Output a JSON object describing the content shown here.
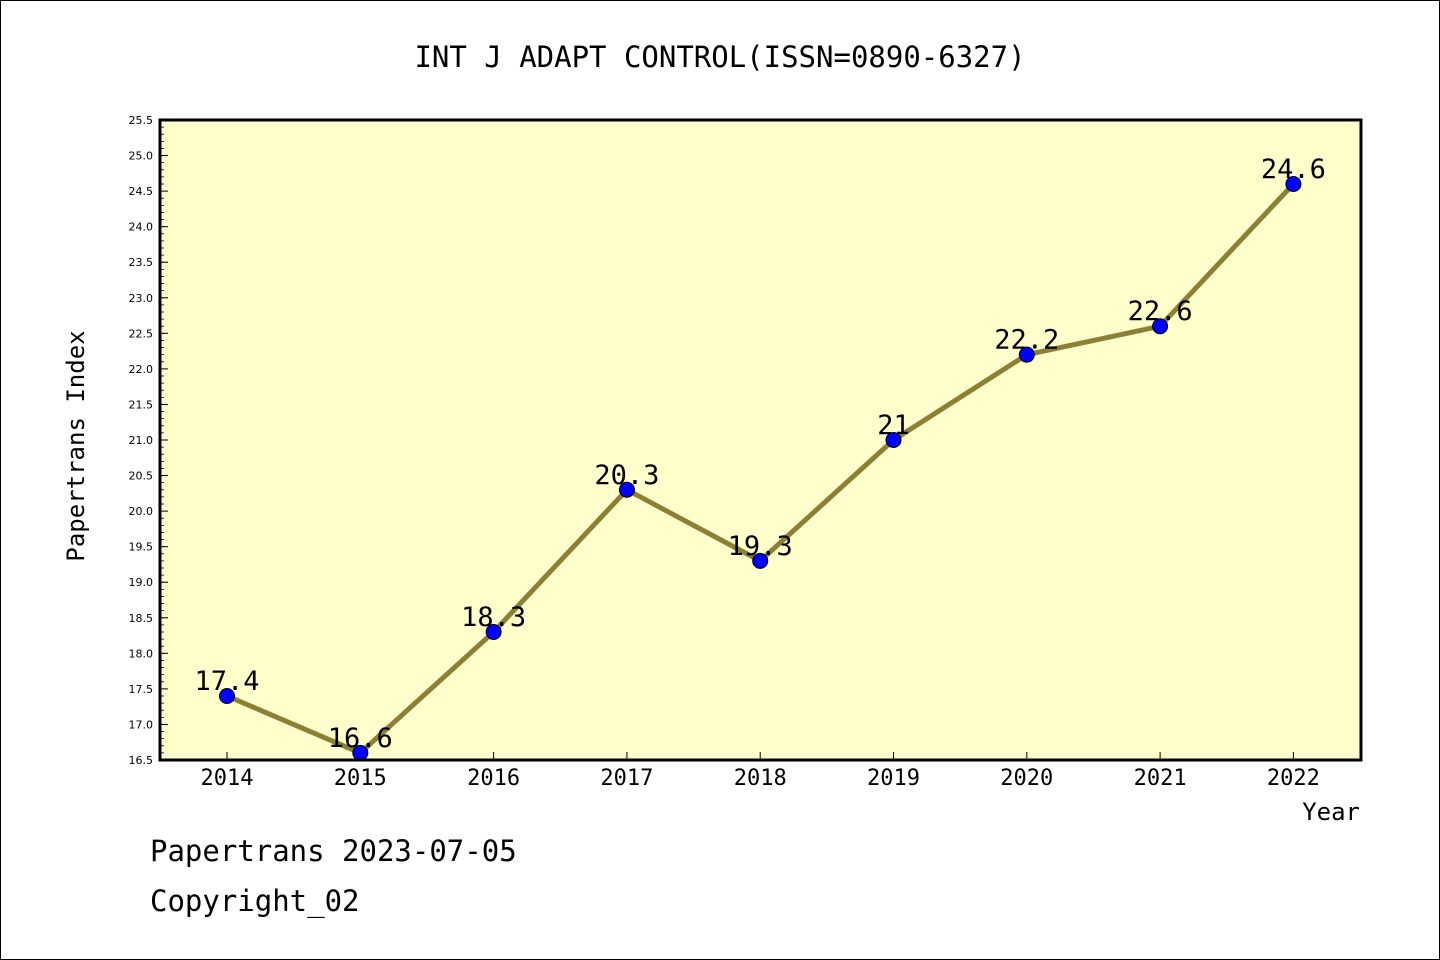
{
  "chart_data": {
    "type": "line",
    "title": "INT J ADAPT CONTROL(ISSN=0890-6327)",
    "xlabel": "Year",
    "ylabel": "Papertrans Index",
    "categories": [
      "2014",
      "2015",
      "2016",
      "2017",
      "2018",
      "2019",
      "2020",
      "2021",
      "2022"
    ],
    "values": [
      17.4,
      16.6,
      18.3,
      20.3,
      19.3,
      21,
      22.2,
      22.6,
      24.6
    ],
    "data_labels": [
      "17.4",
      "16.6",
      "18.3",
      "20.3",
      "19.3",
      "21",
      "22.2",
      "22.6",
      "24.6"
    ],
    "ylim": [
      16.5,
      25.5
    ],
    "yticks": [
      "16.5",
      "17.0",
      "17.5",
      "18.0",
      "18.5",
      "19.0",
      "19.5",
      "20.0",
      "20.5",
      "21.0",
      "21.5",
      "22.0",
      "22.5",
      "23.0",
      "23.5",
      "24.0",
      "24.5",
      "25.0",
      "25.5"
    ],
    "grid": false,
    "colors": {
      "plot_background": "#ffffcc",
      "line": "#8c8035",
      "marker": "#0000ff",
      "axis": "#000000"
    }
  },
  "footer": {
    "line1": "Papertrans 2023-07-05",
    "line2": "Copyright_02"
  }
}
